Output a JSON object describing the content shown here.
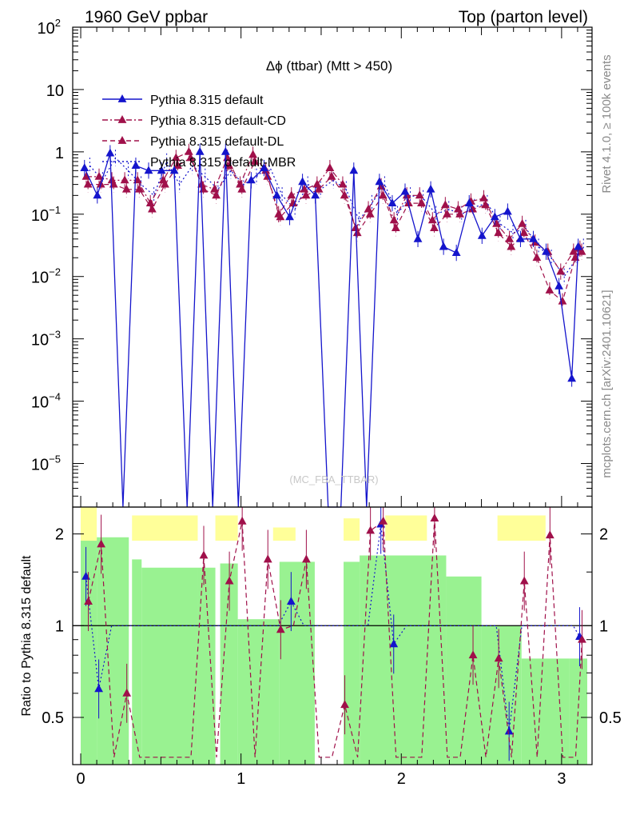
{
  "header": {
    "left": "1960 GeV ppbar",
    "right": "Top (parton level)"
  },
  "side_labels": {
    "rivet": "Rivet 4.1.0, ≥ 100k events",
    "mcplots": "mcplots.cern.ch [arXiv:2401.10621]"
  },
  "watermark": "(MC_FBA_TTBAR)",
  "colors": {
    "default": "#1414cc",
    "variant": "#a0104a",
    "band_green": "#99f291",
    "band_yellow": "#ffff99"
  },
  "chart_data": [
    {
      "type": "line",
      "title": "Δϕ (ttbar) (Mtt > 450)",
      "yscale": "log",
      "ylim": [
        2e-06,
        100
      ],
      "xlim": [
        -0.05,
        3.19
      ],
      "y_ticks": [
        {
          "value": 100,
          "mantissa": "10",
          "exp": "2"
        },
        {
          "value": 10,
          "mantissa": "10",
          "exp": ""
        },
        {
          "value": 1,
          "mantissa": "1",
          "exp": ""
        },
        {
          "value": 0.1,
          "mantissa": "10",
          "exp": "−1"
        },
        {
          "value": 0.01,
          "mantissa": "10",
          "exp": "−2"
        },
        {
          "value": 0.001,
          "mantissa": "10",
          "exp": "−3"
        },
        {
          "value": 0.0001,
          "mantissa": "10",
          "exp": "−4"
        },
        {
          "value": 1e-05,
          "mantissa": "10",
          "exp": "−5"
        }
      ],
      "legend": [
        {
          "name": "Pythia 8.315 default",
          "style": "solid",
          "color": "#1414cc"
        },
        {
          "name": "Pythia 8.315 default-CD",
          "style": "dashdot",
          "color": "#a0104a"
        },
        {
          "name": "Pythia 8.315 default-DL",
          "style": "dashed",
          "color": "#a0104a"
        },
        {
          "name": "Pythia 8.315 default-MBR",
          "style": "dotted",
          "color": "#1414cc"
        }
      ],
      "x": [
        0.04,
        0.12,
        0.2,
        0.28,
        0.36,
        0.44,
        0.52,
        0.6,
        0.68,
        0.76,
        0.84,
        0.92,
        1.0,
        1.08,
        1.16,
        1.24,
        1.32,
        1.4,
        1.48,
        1.56,
        1.64,
        1.72,
        1.8,
        1.88,
        1.96,
        2.04,
        2.12,
        2.2,
        2.28,
        2.36,
        2.44,
        2.52,
        2.6,
        2.68,
        2.76,
        2.84,
        2.92,
        3.0,
        3.08,
        3.12
      ],
      "series": [
        {
          "name": "Pythia 8.315 default",
          "values": [
            0.55,
            0.2,
            0.95,
            0,
            0.6,
            0.5,
            0.5,
            0.5,
            0,
            1.0,
            0,
            1.0,
            0,
            0.35,
            0.55,
            0.2,
            0.09,
            0.33,
            0.2,
            0,
            0,
            0.5,
            0,
            0.33,
            0.15,
            0.23,
            0.04,
            0.25,
            0.03,
            0.024,
            0.15,
            0.045,
            0.09,
            0.11,
            0.04,
            0.04,
            0.025,
            0.007,
            0.00023,
            0.03
          ]
        },
        {
          "name": "Pythia 8.315 default-CD",
          "values": [
            0.4,
            0.4,
            0.35,
            0.35,
            0.35,
            0.15,
            0.35,
            0.8,
            1.0,
            0.3,
            0.25,
            0.8,
            0.3,
            0.9,
            0.5,
            0.1,
            0.2,
            0.25,
            0.3,
            0.55,
            0.3,
            0.06,
            0.12,
            0.28,
            0.08,
            0.2,
            0.2,
            0.08,
            0.14,
            0.12,
            0.16,
            0.18,
            0.07,
            0.04,
            0.07,
            0.035,
            0.025,
            0.012,
            0.025,
            0.028
          ]
        },
        {
          "name": "Pythia 8.315 default-DL",
          "values": [
            0.3,
            0.3,
            0.3,
            0.25,
            0.25,
            0.12,
            0.3,
            0.6,
            0.8,
            0.25,
            0.2,
            0.6,
            0.25,
            0.7,
            0.4,
            0.09,
            0.15,
            0.2,
            0.25,
            0.4,
            0.2,
            0.05,
            0.1,
            0.2,
            0.06,
            0.15,
            0.15,
            0.06,
            0.1,
            0.1,
            0.12,
            0.14,
            0.05,
            0.03,
            0.05,
            0.02,
            0.006,
            0.004,
            0.02,
            0.025
          ]
        },
        {
          "name": "Pythia 8.315 default-MBR",
          "values": [
            0.6,
            0.35,
            0.8,
            0.5,
            0.3,
            0.2,
            0.7,
            0.3,
            0.6,
            0.4,
            0.25,
            0.5,
            0.3,
            0.4,
            0.6,
            0.2,
            0.12,
            0.3,
            0.25,
            0.35,
            0.25,
            0.08,
            0.15,
            0.3,
            0.1,
            0.2,
            0.18,
            0.1,
            0.12,
            0.1,
            0.13,
            0.15,
            0.07,
            0.05,
            0.06,
            0.03,
            0.02,
            0.01,
            0.02,
            0.03
          ]
        }
      ]
    },
    {
      "type": "line",
      "ylabel": "Ratio to Pythia 8.315 default",
      "yscale": "log",
      "ylim": [
        0.35,
        2.45
      ],
      "y_ticks": [
        0.5,
        1,
        2
      ],
      "x_ticks": [
        0,
        1,
        2,
        3
      ],
      "reference": 1,
      "series": [
        {
          "name": "Pythia 8.315 default",
          "values": [
            1.45,
            0.62,
            1.0,
            1.0,
            1.0,
            1.0,
            1.0,
            1.0,
            1.0,
            1.0,
            1.0,
            1.0,
            1.0,
            1.0,
            1.0,
            1.0,
            1.2,
            1.0,
            1.0,
            1.0,
            1.0,
            1.0,
            1.0,
            2.15,
            0.87,
            1.0,
            1.0,
            1.0,
            1.0,
            1.0,
            1.0,
            1.0,
            1.0,
            0.45,
            1.0,
            1.0,
            1.0,
            1.0,
            1.0,
            0.92
          ]
        },
        {
          "name": "Pythia 8.315 default-CD",
          "values": [
            1.2,
            1.85,
            0.37,
            0.6,
            0.37,
            0.37,
            0.37,
            0.37,
            0.37,
            1.7,
            0.37,
            1.4,
            2.2,
            0.37,
            1.65,
            0.97,
            1.0,
            1.65,
            0.37,
            0.37,
            0.55,
            0.37,
            2.05,
            2.2,
            0.37,
            0.37,
            0.37,
            2.25,
            0.37,
            0.37,
            0.8,
            0.37,
            0.78,
            0.37,
            1.4,
            0.37,
            1.98,
            0.37,
            0.37,
            0.9
          ]
        }
      ],
      "band": {
        "green": [
          [
            0.0,
            0.1,
            1.98
          ],
          [
            0.1,
            0.3,
            1.95
          ],
          [
            0.3,
            0.3,
            1.65
          ],
          [
            0.3,
            0.32,
            0.35
          ],
          [
            0.32,
            0.38,
            1.65
          ],
          [
            0.38,
            0.73,
            1.55
          ],
          [
            0.73,
            0.84,
            1.55
          ],
          [
            0.84,
            0.87,
            0.35
          ],
          [
            0.87,
            0.98,
            1.6
          ],
          [
            0.98,
            1.24,
            1.05
          ],
          [
            1.24,
            1.46,
            1.62
          ],
          [
            1.64,
            1.74,
            1.62
          ],
          [
            1.74,
            2.28,
            1.7
          ],
          [
            2.28,
            2.5,
            1.45
          ],
          [
            2.5,
            2.75,
            1.0
          ],
          [
            2.75,
            3.05,
            0.78
          ],
          [
            3.05,
            3.16,
            0.78
          ]
        ],
        "yellow": [
          [
            0.0,
            0.1,
            2.45
          ],
          [
            0.32,
            0.73,
            2.3
          ],
          [
            0.84,
            0.98,
            2.3
          ],
          [
            1.2,
            1.34,
            2.1
          ],
          [
            1.64,
            1.74,
            2.25
          ],
          [
            1.9,
            2.16,
            2.3
          ],
          [
            2.6,
            2.9,
            2.3
          ],
          [
            3.05,
            3.16,
            1.6
          ]
        ]
      }
    }
  ]
}
